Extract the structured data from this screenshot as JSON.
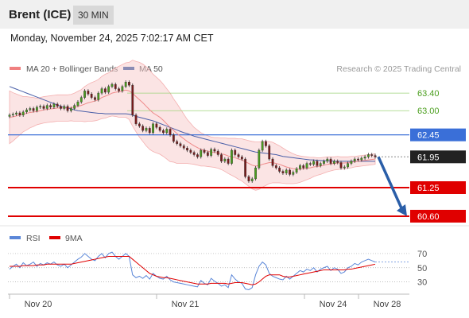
{
  "header": {
    "title": "Brent (ICE)",
    "timeframe": "30 MIN"
  },
  "timestamp": "Monday, November 24, 2025 7:02:17 AM CET",
  "legend": {
    "items": [
      {
        "label": "MA 20 + Bollinger Bands",
        "color": "#f08080"
      },
      {
        "label": "MA 50",
        "color": "#1f4e9e"
      }
    ],
    "credit": "Research © 2025 Trading Central"
  },
  "rsi_legend": {
    "items": [
      {
        "label": "RSI",
        "color": "#5b87d8"
      },
      {
        "label": "9MA",
        "color": "#e00000"
      }
    ]
  },
  "chart_data": [
    {
      "type": "candlestick",
      "title": "",
      "x_ticks": [
        "Nov 20",
        "Nov 21",
        "Nov 24",
        "Nov 28"
      ],
      "ylim": [
        60.4,
        63.8
      ],
      "levels": [
        {
          "value": 63.4,
          "label": "63.40",
          "kind": "resistance",
          "color": "#9ed37a"
        },
        {
          "value": 63.0,
          "label": "63.00",
          "kind": "resistance",
          "color": "#9ed37a"
        },
        {
          "value": 62.45,
          "label": "62.45",
          "kind": "pivot",
          "color": "#3a6fd8"
        },
        {
          "value": 61.95,
          "label": "61.95",
          "kind": "last",
          "color": "#222222"
        },
        {
          "value": 61.25,
          "label": "61.25",
          "kind": "support",
          "color": "#e00000"
        },
        {
          "value": 60.6,
          "label": "60.60",
          "kind": "support",
          "color": "#e00000"
        }
      ],
      "closes": [
        62.9,
        62.92,
        62.95,
        62.9,
        62.97,
        63.02,
        63.05,
        63.0,
        63.08,
        63.1,
        63.05,
        63.12,
        63.08,
        63.15,
        63.1,
        63.05,
        63.1,
        63.0,
        63.05,
        63.12,
        63.2,
        63.3,
        63.45,
        63.38,
        63.3,
        63.25,
        63.4,
        63.5,
        63.42,
        63.55,
        63.6,
        63.5,
        63.45,
        63.55,
        63.65,
        63.58,
        62.9,
        62.7,
        62.65,
        62.55,
        62.6,
        62.5,
        62.7,
        62.62,
        62.55,
        62.5,
        62.58,
        62.45,
        62.3,
        62.25,
        62.2,
        62.15,
        62.1,
        62.05,
        62.0,
        61.95,
        62.1,
        62.05,
        61.98,
        62.12,
        62.08,
        62.0,
        61.85,
        61.9,
        61.8,
        62.1,
        62.0,
        61.95,
        61.9,
        61.5,
        61.4,
        61.45,
        61.7,
        62.1,
        62.3,
        62.2,
        61.9,
        61.75,
        61.7,
        61.62,
        61.58,
        61.65,
        61.55,
        61.6,
        61.68,
        61.75,
        61.7,
        61.8,
        61.78,
        61.85,
        61.75,
        61.8,
        61.85,
        61.9,
        61.8,
        61.85,
        61.82,
        61.7,
        61.72,
        61.8,
        61.85,
        61.9,
        61.88,
        61.92,
        61.95,
        62.0,
        61.98,
        61.95
      ],
      "ma20": [
        62.85,
        62.86,
        62.88,
        62.9,
        62.92,
        62.94,
        62.96,
        62.97,
        62.98,
        63.0,
        63.02,
        63.03,
        63.04,
        63.05,
        63.06,
        63.06,
        63.06,
        63.06,
        63.07,
        63.08,
        63.1,
        63.12,
        63.15,
        63.18,
        63.2,
        63.22,
        63.25,
        63.3,
        63.33,
        63.36,
        63.4,
        63.42,
        63.43,
        63.45,
        63.47,
        63.45,
        63.4,
        63.32,
        63.25,
        63.18,
        63.1,
        63.02,
        62.95,
        62.9,
        62.85,
        62.78,
        62.7,
        62.62,
        62.55,
        62.48,
        62.42,
        62.36,
        62.3,
        62.25,
        62.2,
        62.16,
        62.12,
        62.1,
        62.08,
        62.06,
        62.05,
        62.04,
        62.02,
        62.0,
        61.97,
        61.95,
        61.93,
        61.9,
        61.88,
        61.84,
        61.8,
        61.76,
        61.74,
        61.75,
        61.78,
        61.8,
        61.82,
        61.82,
        61.8,
        61.78,
        61.75,
        61.72,
        61.7,
        61.68,
        61.67,
        61.67,
        61.68,
        61.69,
        61.7,
        61.72,
        61.73,
        61.74,
        61.76,
        61.78,
        61.79,
        61.8,
        61.81,
        61.81,
        61.81,
        61.82,
        61.83,
        61.84,
        61.85,
        61.86,
        61.87,
        61.88,
        61.89,
        61.9
      ],
      "ma50": [
        63.55,
        63.52,
        63.49,
        63.46,
        63.43,
        63.4,
        63.37,
        63.34,
        63.31,
        63.28,
        63.25,
        63.22,
        63.19,
        63.16,
        63.13,
        63.1,
        63.08,
        63.06,
        63.04,
        63.02,
        63.0,
        62.99,
        62.98,
        62.97,
        62.96,
        62.95,
        62.94,
        62.94,
        62.93,
        62.93,
        62.93,
        62.93,
        62.93,
        62.93,
        62.93,
        62.92,
        62.9,
        62.87,
        62.85,
        62.83,
        62.81,
        62.79,
        62.77,
        62.74,
        62.71,
        62.68,
        62.65,
        62.62,
        62.59,
        62.56,
        62.53,
        62.5,
        62.48,
        62.45,
        62.42,
        62.4,
        62.38,
        62.36,
        62.34,
        62.32,
        62.3,
        62.28,
        62.26,
        62.24,
        62.22,
        62.2,
        62.18,
        62.16,
        62.14,
        62.12,
        62.1,
        62.08,
        62.06,
        62.05,
        62.04,
        62.03,
        62.02,
        62.01,
        62.0,
        61.98,
        61.96,
        61.95,
        61.94,
        61.93,
        61.92,
        61.91,
        61.9,
        61.89,
        61.88,
        61.88,
        61.87,
        61.87,
        61.86,
        61.86,
        61.86,
        61.85,
        61.85,
        61.85,
        61.85,
        61.85,
        61.85,
        61.85,
        61.85,
        61.85,
        61.85,
        61.85,
        61.85,
        61.85
      ],
      "bb_width": [
        0.6,
        0.55,
        0.5,
        0.45,
        0.4,
        0.38,
        0.35,
        0.33,
        0.3,
        0.3,
        0.3,
        0.3,
        0.3,
        0.3,
        0.3,
        0.3,
        0.3,
        0.3,
        0.3,
        0.32,
        0.34,
        0.36,
        0.4,
        0.42,
        0.44,
        0.45,
        0.46,
        0.48,
        0.5,
        0.5,
        0.52,
        0.55,
        0.58,
        0.6,
        0.62,
        0.65,
        0.75,
        0.8,
        0.85,
        0.88,
        0.9,
        0.9,
        0.88,
        0.86,
        0.84,
        0.82,
        0.8,
        0.78,
        0.72,
        0.68,
        0.62,
        0.56,
        0.5,
        0.46,
        0.42,
        0.4,
        0.38,
        0.36,
        0.35,
        0.34,
        0.34,
        0.35,
        0.36,
        0.38,
        0.4,
        0.42,
        0.44,
        0.46,
        0.48,
        0.5,
        0.52,
        0.54,
        0.55,
        0.54,
        0.52,
        0.5,
        0.48,
        0.46,
        0.44,
        0.42,
        0.4,
        0.38,
        0.36,
        0.34,
        0.32,
        0.3,
        0.28,
        0.26,
        0.24,
        0.22,
        0.2,
        0.19,
        0.18,
        0.17,
        0.16,
        0.15,
        0.15,
        0.14,
        0.14,
        0.13,
        0.13,
        0.12,
        0.12,
        0.12,
        0.12,
        0.12,
        0.12,
        0.12
      ],
      "forecast": {
        "from": 61.95,
        "to": 60.6
      }
    },
    {
      "type": "line",
      "title": "",
      "series": [
        {
          "name": "RSI",
          "values": [
            48,
            52,
            55,
            50,
            57,
            53,
            55,
            58,
            52,
            56,
            54,
            57,
            55,
            58,
            54,
            52,
            55,
            50,
            54,
            58,
            62,
            65,
            70,
            66,
            62,
            60,
            66,
            70,
            64,
            70,
            72,
            66,
            62,
            66,
            70,
            66,
            40,
            36,
            38,
            35,
            39,
            34,
            42,
            38,
            35,
            34,
            38,
            33,
            30,
            29,
            28,
            27,
            26,
            25,
            24,
            23,
            32,
            28,
            26,
            35,
            31,
            28,
            24,
            26,
            22,
            40,
            34,
            30,
            28,
            20,
            19,
            22,
            40,
            52,
            58,
            54,
            42,
            38,
            36,
            34,
            33,
            38,
            34,
            38,
            42,
            46,
            44,
            48,
            46,
            50,
            44,
            48,
            50,
            52,
            46,
            50,
            48,
            42,
            44,
            50,
            52,
            56,
            54,
            58,
            60,
            62,
            60,
            58
          ]
        },
        {
          "name": "9MA",
          "values": [
            52,
            52,
            52,
            52,
            53,
            53,
            53,
            53,
            54,
            54,
            54,
            55,
            55,
            55,
            55,
            55,
            55,
            55,
            55,
            56,
            57,
            58,
            59,
            60,
            61,
            62,
            63,
            64,
            65,
            66,
            66,
            66,
            66,
            66,
            66,
            66,
            62,
            58,
            54,
            50,
            46,
            42,
            40,
            38,
            37,
            36,
            36,
            35,
            34,
            33,
            32,
            31,
            30,
            29,
            28,
            27,
            27,
            27,
            27,
            28,
            28,
            28,
            28,
            28,
            27,
            28,
            29,
            29,
            29,
            28,
            27,
            26,
            27,
            30,
            34,
            38,
            40,
            40,
            40,
            40,
            38,
            37,
            37,
            38,
            39,
            40,
            41,
            42,
            43,
            44,
            45,
            46,
            47,
            47,
            47,
            47,
            47,
            47,
            47,
            48,
            48,
            49,
            50,
            51,
            52,
            53,
            54,
            55
          ]
        }
      ],
      "ylim": [
        15,
        80
      ],
      "y_ticks": [
        "70",
        "50",
        "30"
      ],
      "y_tick_values": [
        70,
        50,
        30
      ]
    }
  ]
}
